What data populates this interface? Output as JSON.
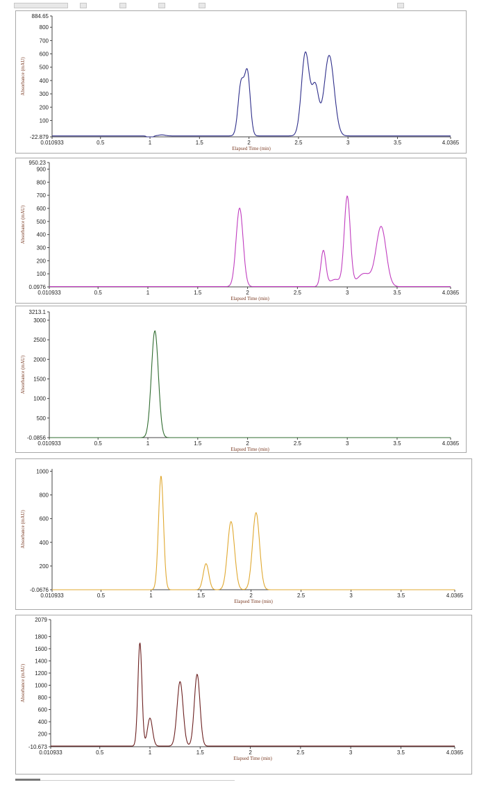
{
  "chart_data": [
    {
      "type": "line",
      "xlabel": "Elapsed Time (min)",
      "ylabel": "Absorbance (mAU)",
      "xlim": [
        0.010933,
        4.0365
      ],
      "x_ticks": [
        "0.010933",
        "0.5",
        "1",
        "1.5",
        "2",
        "2.5",
        "3",
        "3.5",
        "4.0365"
      ],
      "x_tick_values": [
        0.010933,
        0.5,
        1,
        1.5,
        2,
        2.5,
        3,
        3.5,
        4.0365
      ],
      "ylim": [
        -22.879,
        884.65
      ],
      "y_ticks": [
        "-22.879",
        "100",
        "200",
        "300",
        "400",
        "500",
        "600",
        "700",
        "800",
        "884.65"
      ],
      "y_tick_values": [
        -22.879,
        100,
        200,
        300,
        400,
        500,
        600,
        700,
        800,
        884.65
      ],
      "color": "#2e2e8a",
      "baseline": -16,
      "peaks": [
        [
          1.0,
          -30,
          0.02
        ],
        [
          1.12,
          8,
          0.035
        ],
        [
          1.92,
          390,
          0.03
        ],
        [
          1.985,
          460,
          0.028
        ],
        [
          2.57,
          625,
          0.04
        ],
        [
          2.67,
          360,
          0.035
        ],
        [
          2.81,
          605,
          0.05
        ]
      ]
    },
    {
      "type": "line",
      "xlabel": "Elapsed Time (min)",
      "ylabel": "Absorbance (mAU)",
      "xlim": [
        0.010933,
        4.0365
      ],
      "x_ticks": [
        "0.010933",
        "0.5",
        "1",
        "1.5",
        "2",
        "2.5",
        "3",
        "3.5",
        "4.0365"
      ],
      "x_tick_values": [
        0.010933,
        0.5,
        1,
        1.5,
        2,
        2.5,
        3,
        3.5,
        4.0365
      ],
      "ylim": [
        0.0976,
        950.23
      ],
      "y_ticks": [
        "0.0976",
        "100",
        "200",
        "300",
        "400",
        "500",
        "600",
        "700",
        "800",
        "900",
        "950.23"
      ],
      "y_tick_values": [
        0.0976,
        100,
        200,
        300,
        400,
        500,
        600,
        700,
        800,
        900,
        950.23
      ],
      "color": "#c03cbf",
      "baseline": 2,
      "peaks": [
        [
          1.92,
          600,
          0.035
        ],
        [
          2.76,
          270,
          0.025
        ],
        [
          2.88,
          55,
          0.06
        ],
        [
          3.0,
          680,
          0.03
        ],
        [
          3.17,
          100,
          0.07
        ],
        [
          3.34,
          455,
          0.05
        ]
      ]
    },
    {
      "type": "line",
      "xlabel": "Elapsed Time (min)",
      "ylabel": "Absorbance (mAU)",
      "xlim": [
        0.010933,
        4.0365
      ],
      "x_ticks": [
        "0.010933",
        "0.5",
        "1",
        "1.5",
        "2",
        "2.5",
        "3",
        "3.5",
        "4.0365"
      ],
      "x_tick_values": [
        0.010933,
        0.5,
        1,
        1.5,
        2,
        2.5,
        3,
        3.5,
        4.0365
      ],
      "ylim": [
        -0.0856,
        3213.1
      ],
      "y_ticks": [
        "-0.0856",
        "500",
        "1000",
        "1500",
        "2000",
        "2500",
        "3000",
        "3213.1"
      ],
      "y_tick_values": [
        -0.0856,
        500,
        1000,
        1500,
        2000,
        2500,
        3000,
        3213.1
      ],
      "color": "#2f6b2f",
      "baseline": 0,
      "peaks": [
        [
          1.07,
          2730,
          0.035
        ]
      ]
    },
    {
      "type": "line",
      "xlabel": "Elapsed Time (min)",
      "ylabel": "Absorbance (mAU)",
      "xlim": [
        0.010933,
        4.0365
      ],
      "x_ticks": [
        "0.010933",
        "0.5",
        "1",
        "1.5",
        "2",
        "2.5",
        "3",
        "3.5",
        "4.0365"
      ],
      "x_tick_values": [
        0.010933,
        0.5,
        1,
        1.5,
        2,
        2.5,
        3,
        3.5,
        4.0365
      ],
      "ylim": [
        -0.0676,
        1020
      ],
      "y_ticks": [
        "-0.0676",
        "200",
        "400",
        "600",
        "800",
        "1000"
      ],
      "y_tick_values": [
        -0.0676,
        200,
        400,
        600,
        800,
        1000
      ],
      "color": "#e0a830",
      "baseline": 0,
      "peaks": [
        [
          1.1,
          960,
          0.025
        ],
        [
          1.55,
          220,
          0.028
        ],
        [
          1.8,
          575,
          0.035
        ],
        [
          2.05,
          650,
          0.035
        ]
      ]
    },
    {
      "type": "line",
      "xlabel": "Elapsed Time (min)",
      "ylabel": "Absorbance (mAU)",
      "xlim": [
        0.010933,
        4.0365
      ],
      "x_ticks": [
        "0.010933",
        "0.5",
        "1",
        "1.5",
        "2",
        "2.5",
        "3",
        "3.5",
        "4.0365"
      ],
      "x_tick_values": [
        0.010933,
        0.5,
        1,
        1.5,
        2,
        2.5,
        3,
        3.5,
        4.0365
      ],
      "ylim": [
        -10.673,
        2079
      ],
      "y_ticks": [
        "-10.673",
        "200",
        "400",
        "600",
        "800",
        "1000",
        "1200",
        "1400",
        "1600",
        "1800",
        "2079"
      ],
      "y_tick_values": [
        -10.673,
        200,
        400,
        600,
        800,
        1000,
        1200,
        1400,
        1600,
        1800,
        2079
      ],
      "color": "#6b1f1f",
      "baseline": 0,
      "peaks": [
        [
          0.9,
          1700,
          0.02
        ],
        [
          1.0,
          460,
          0.025
        ],
        [
          1.3,
          1060,
          0.03
        ],
        [
          1.47,
          1180,
          0.028
        ]
      ]
    }
  ]
}
